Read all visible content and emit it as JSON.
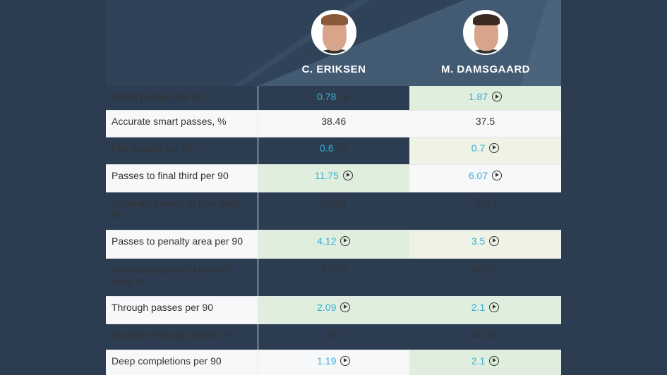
{
  "players": [
    {
      "name": "C. ERIKSEN"
    },
    {
      "name": "M. DAMSGAARD"
    }
  ],
  "colors": {
    "header": "#2f4257",
    "win": "#dfeedd",
    "lite": "#eef3e6",
    "link": "#3aaed8"
  },
  "rows": [
    {
      "label": "Smart passes per 90",
      "a": "0.78",
      "b": "1.87",
      "video": true,
      "hl": [
        "",
        "win"
      ],
      "h": 34
    },
    {
      "label": "Accurate smart passes, %",
      "a": "38.46",
      "b": "37.5",
      "video": false,
      "hl": [
        "",
        ""
      ],
      "h": 38
    },
    {
      "label": "Key passes per 90",
      "a": "0.6",
      "b": "0.7",
      "video": true,
      "hl": [
        "",
        "lite"
      ],
      "h": 39
    },
    {
      "label": "Passes to final third per 90",
      "a": "11.75",
      "b": "6.07",
      "video": true,
      "hl": [
        "win",
        ""
      ],
      "h": 39
    },
    {
      "label": "Accurate passes to final third, %",
      "a": "70.56",
      "b": "75.64",
      "video": false,
      "hl": [
        "",
        ""
      ],
      "h": 54
    },
    {
      "label": "Passes to penalty area per 90",
      "a": "4.12",
      "b": "3.5",
      "video": true,
      "hl": [
        "win",
        "lite"
      ],
      "h": 40
    },
    {
      "label": "Accurate passes to penalty area, %",
      "a": "42.03",
      "b": "46.67",
      "video": false,
      "hl": [
        "",
        ""
      ],
      "h": 54
    },
    {
      "label": "Through passes per 90",
      "a": "2.09",
      "b": "2.1",
      "video": true,
      "hl": [
        "win",
        "win"
      ],
      "h": 39
    },
    {
      "label": "Accurate through passes, %",
      "a": "40",
      "b": "40.74",
      "video": false,
      "hl": [
        "",
        ""
      ],
      "h": 37
    },
    {
      "label": "Deep completions per 90",
      "a": "1.19",
      "b": "2.1",
      "video": true,
      "hl": [
        "",
        "win"
      ],
      "h": 36
    }
  ]
}
